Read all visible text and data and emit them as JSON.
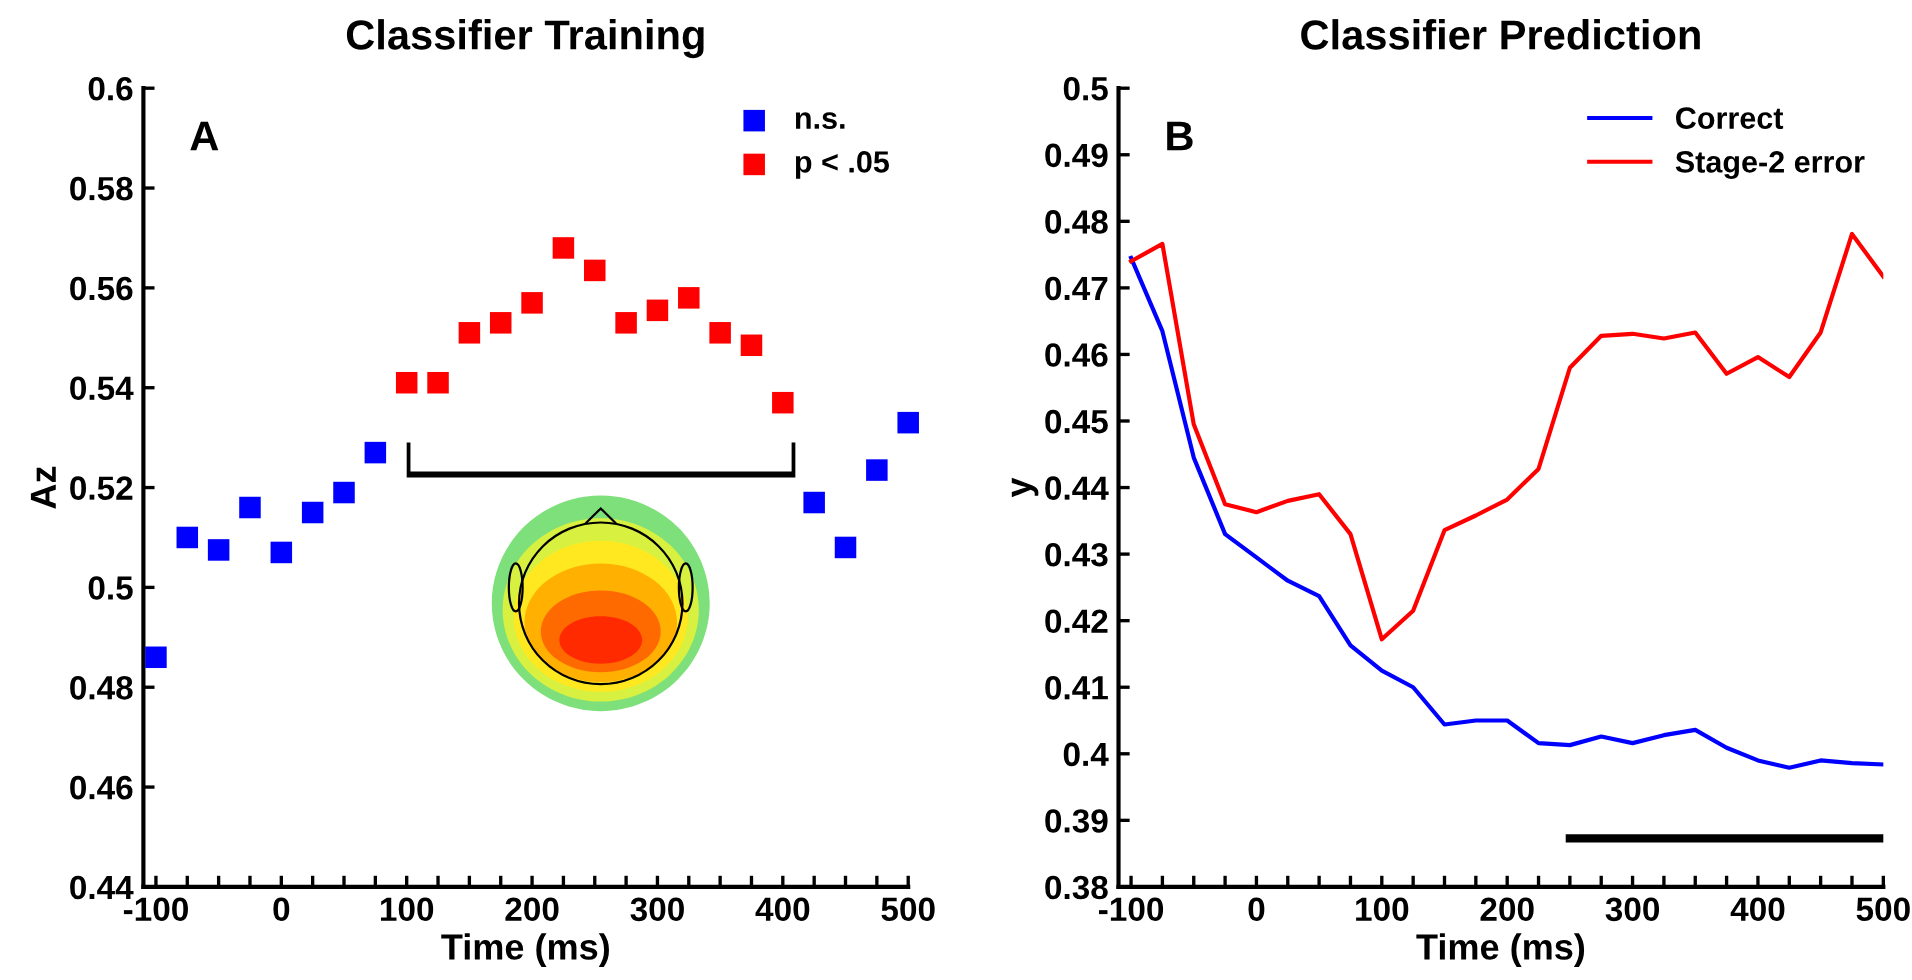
{
  "chart_data": [
    {
      "type": "scatter",
      "title": "Classifier Training",
      "xlabel": "Time (ms)",
      "ylabel": "Az",
      "annotations": [
        "A"
      ],
      "xlim": [
        -110,
        500
      ],
      "ylim": [
        0.44,
        0.6
      ],
      "xticks": [
        -100,
        {
          "value": -75,
          "label": null
        },
        {
          "value": -50,
          "label": null
        },
        {
          "value": -25,
          "label": null
        },
        0,
        {
          "value": 25,
          "label": null
        },
        {
          "value": 50,
          "label": null
        },
        {
          "value": 75,
          "label": null
        },
        100,
        {
          "value": 125,
          "label": null
        },
        {
          "value": 150,
          "label": null
        },
        {
          "value": 175,
          "label": null
        },
        200,
        {
          "value": 225,
          "label": null
        },
        {
          "value": 250,
          "label": null
        },
        {
          "value": 275,
          "label": null
        },
        300,
        {
          "value": 325,
          "label": null
        },
        {
          "value": 350,
          "label": null
        },
        {
          "value": 375,
          "label": null
        },
        400,
        {
          "value": 425,
          "label": null
        },
        {
          "value": 450,
          "label": null
        },
        {
          "value": 475,
          "label": null
        },
        500
      ],
      "yticks": [
        0.44,
        0.46,
        0.48,
        0.5,
        0.52,
        0.54,
        0.56,
        0.58,
        0.6
      ],
      "marker": "square",
      "legend": "top right",
      "grid": false,
      "series": [
        {
          "name": "n.s.",
          "color": "#0000ff",
          "x": [
            -100,
            -75,
            -50,
            -25,
            0,
            25,
            50,
            75,
            425,
            450,
            475,
            500
          ],
          "values": [
            0.486,
            0.51,
            0.5075,
            0.516,
            0.507,
            0.515,
            0.519,
            0.527,
            0.517,
            0.508,
            0.5235,
            0.533
          ]
        },
        {
          "name": "p < .05",
          "color": "#ff0000",
          "x": [
            100,
            125,
            150,
            175,
            200,
            225,
            250,
            275,
            300,
            325,
            350,
            375,
            400
          ],
          "values": [
            0.541,
            0.541,
            0.551,
            0.553,
            0.557,
            0.568,
            0.5635,
            0.553,
            0.5555,
            0.558,
            0.551,
            0.5485,
            0.537
          ]
        }
      ]
    },
    {
      "type": "line",
      "title": "Classifier Prediction",
      "xlabel": "Time (ms)",
      "ylabel": "y",
      "annotations": [
        "B"
      ],
      "xlim": [
        -110,
        500
      ],
      "ylim": [
        0.38,
        0.5
      ],
      "xticks": [
        -100,
        {
          "value": -75,
          "label": null
        },
        {
          "value": -50,
          "label": null
        },
        {
          "value": -25,
          "label": null
        },
        0,
        {
          "value": 25,
          "label": null
        },
        {
          "value": 50,
          "label": null
        },
        {
          "value": 75,
          "label": null
        },
        100,
        {
          "value": 125,
          "label": null
        },
        {
          "value": 150,
          "label": null
        },
        {
          "value": 175,
          "label": null
        },
        200,
        {
          "value": 225,
          "label": null
        },
        {
          "value": 250,
          "label": null
        },
        {
          "value": 275,
          "label": null
        },
        300,
        {
          "value": 325,
          "label": null
        },
        {
          "value": 350,
          "label": null
        },
        {
          "value": 375,
          "label": null
        },
        400,
        {
          "value": 425,
          "label": null
        },
        {
          "value": 450,
          "label": null
        },
        {
          "value": 475,
          "label": null
        },
        500
      ],
      "yticks": [
        0.38,
        0.39,
        0.4,
        0.41,
        0.42,
        0.43,
        0.44,
        0.45,
        0.46,
        0.47,
        0.48,
        0.49,
        0.5
      ],
      "legend": "top right",
      "grid": false,
      "line_style": "solid",
      "series": [
        {
          "name": "Correct",
          "color": "#0000ff",
          "x": [
            -100,
            -75,
            -50,
            -25,
            0,
            25,
            50,
            75,
            100,
            125,
            150,
            175,
            200,
            225,
            250,
            275,
            300,
            325,
            350,
            375,
            400,
            425,
            450,
            475,
            500
          ],
          "values": [
            0.4745,
            0.4635,
            0.4445,
            0.433,
            0.4295,
            0.426,
            0.4237,
            0.4163,
            0.4125,
            0.41,
            0.4044,
            0.405,
            0.405,
            0.4016,
            0.4013,
            0.4026,
            0.4016,
            0.4028,
            0.4036,
            0.4009,
            0.399,
            0.3979,
            0.399,
            0.3986,
            0.3984
          ]
        },
        {
          "name": "Stage-2 error",
          "color": "#ff0000",
          "x": [
            -100,
            -75,
            -50,
            -25,
            0,
            25,
            50,
            75,
            100,
            125,
            150,
            175,
            200,
            225,
            250,
            275,
            300,
            325,
            350,
            375,
            400,
            425,
            450,
            475,
            500
          ],
          "values": [
            0.474,
            0.4766,
            0.4495,
            0.4375,
            0.4363,
            0.438,
            0.439,
            0.433,
            0.4172,
            0.4215,
            0.4336,
            0.4358,
            0.4382,
            0.4428,
            0.458,
            0.4628,
            0.4631,
            0.4624,
            0.4633,
            0.4571,
            0.4596,
            0.4566,
            0.4633,
            0.4781,
            0.4717
          ]
        },
        {
          "color": "#000000",
          "x": [
            250,
            500
          ],
          "values": [
            0.3873,
            0.3873
          ]
        }
      ]
    }
  ]
}
